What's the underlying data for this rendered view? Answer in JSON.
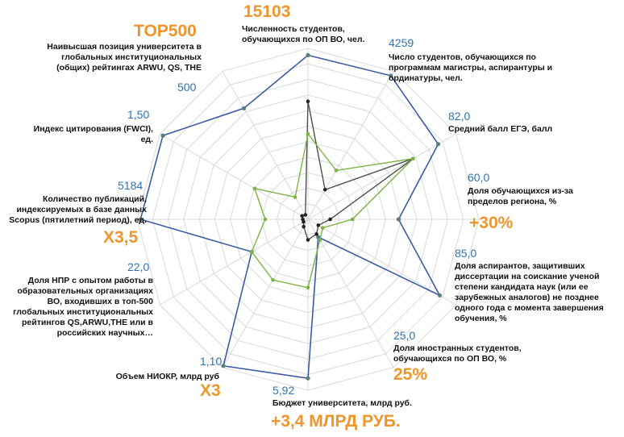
{
  "chart_data": {
    "type": "radar",
    "title": "",
    "axes": [
      {
        "label": "Численность студентов, обучающихся по ОП ВО, чел.",
        "target": "15103",
        "highlight": ""
      },
      {
        "label": "Число студентов, обучающихся по программам магистры, аспирантуры и ординатуры, чел.",
        "target": "4259",
        "highlight": ""
      },
      {
        "label": "Средний балл ЕГЭ, балл",
        "target": "82,0",
        "highlight": ""
      },
      {
        "label": "Доля обучающихся из-за пределов региона, %",
        "target": "60,0",
        "highlight": "+30%"
      },
      {
        "label": "Доля аспирантов, защитивших диссертации на соискание ученой степени кандидата наук (или ее зарубежных аналогов) не позднее одного года с момента завершения обучения, %",
        "target": "85,0",
        "highlight": ""
      },
      {
        "label": "Доля иностранных студентов, обучающихся по ОП ВО, %",
        "target": "25,0",
        "highlight": "25%"
      },
      {
        "label": "Бюджет университета, млрд руб.",
        "target": "5,92",
        "highlight": "+3,4 МЛРД РУБ."
      },
      {
        "label": "Объем НИОКР, млрд руб",
        "target": "1,10",
        "highlight": "X3"
      },
      {
        "label": "Доля НПР с опытом работы в образовательных организациях ВО, входивших в топ-500 глобальных институциональных рейтингов QS,ARWU,THE или в российских научных…",
        "target": "22,0",
        "highlight": ""
      },
      {
        "label": "Количество публикаций, индексируемых в базе данных Scopus (пятилетний период), ед.",
        "target": "5184",
        "highlight": "X3,5"
      },
      {
        "label": "Индекс цитирования (FWCI), ед.",
        "target": "1,50",
        "highlight": ""
      },
      {
        "label": "Наивысшая позиция университета в глобальных институциональных (общих) рейтингах ARWU, QS, THE",
        "target": "500",
        "highlight": "TOP500"
      }
    ],
    "rlim": [
      0,
      1
    ],
    "grid": true,
    "legend": "none",
    "series": [
      {
        "color": "#3b5ba5",
        "values": [
          0.96,
          0.97,
          0.88,
          0.53,
          0.89,
          0.12,
          0.93,
          0.99,
          0.38,
          0.98,
          0.98,
          0.75
        ]
      },
      {
        "color": "#4f4f4f",
        "values": [
          0.69,
          0.2,
          0.71,
          0.13,
          0.07,
          0.1,
          0.12,
          0.05,
          0.03,
          0.03,
          0.04,
          0.03
        ]
      },
      {
        "color": "#7cb342",
        "values": [
          0.5,
          0.33,
          0.71,
          0.26,
          0.1,
          0.14,
          0.4,
          0.41,
          0.38,
          0.25,
          0.36,
          0.15
        ]
      }
    ]
  }
}
